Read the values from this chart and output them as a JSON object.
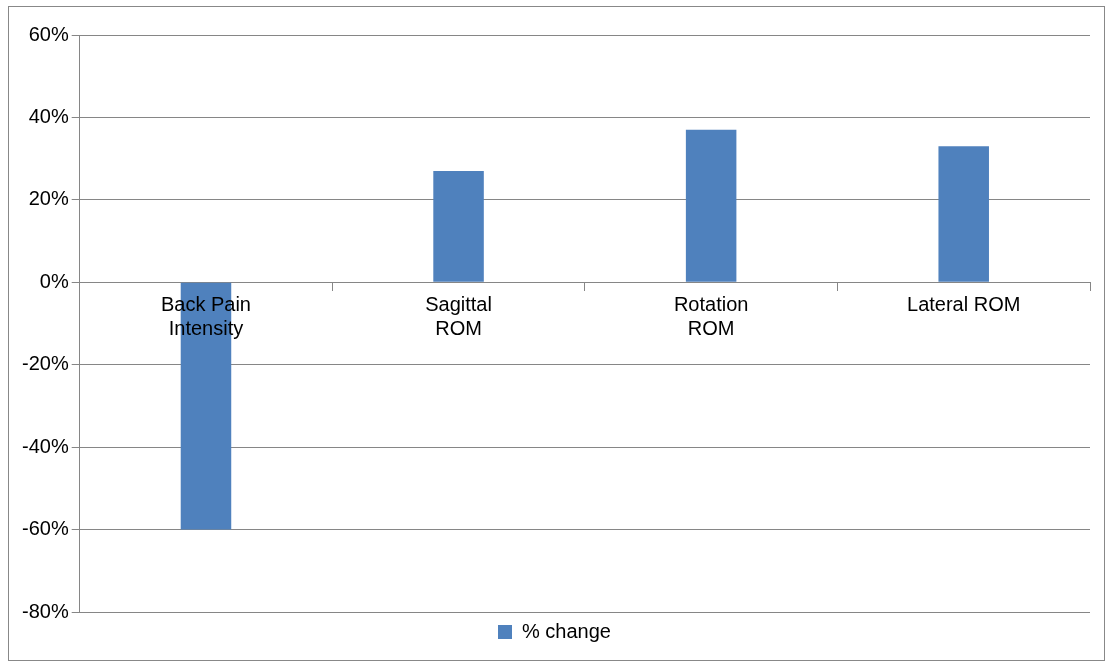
{
  "chart_data": {
    "type": "bar",
    "categories": [
      "Back Pain Intensity",
      "Sagittal ROM",
      "Rotation ROM",
      "Lateral ROM"
    ],
    "series": [
      {
        "name": "% change",
        "color": "#4f81bd",
        "values": [
          -60,
          27,
          37,
          33
        ]
      }
    ],
    "ylim": [
      -80,
      60
    ],
    "yticks": [
      {
        "value": -80,
        "label": "-80%"
      },
      {
        "value": -60,
        "label": "-60%"
      },
      {
        "value": -40,
        "label": "-40%"
      },
      {
        "value": -20,
        "label": "-20%"
      },
      {
        "value": 0,
        "label": "0%"
      },
      {
        "value": 20,
        "label": "20%"
      },
      {
        "value": 40,
        "label": "40%"
      },
      {
        "value": 60,
        "label": "60%"
      }
    ],
    "grid": "y",
    "legend": "bottom"
  }
}
